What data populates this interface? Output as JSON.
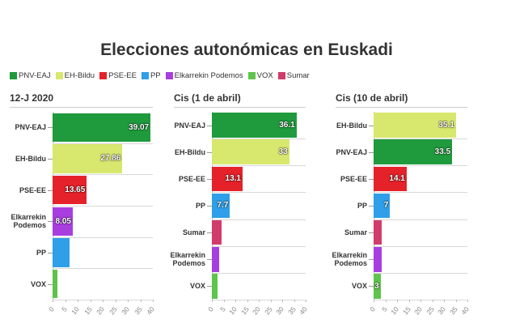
{
  "title": "Elecciones autonómicas en Euskadi",
  "legend": [
    {
      "name": "PNV-EAJ",
      "color": "#1f9a3c"
    },
    {
      "name": "EH-Bildu",
      "color": "#d8e76e"
    },
    {
      "name": "PSE-EE",
      "color": "#e5222a"
    },
    {
      "name": "PP",
      "color": "#2e9fe8"
    },
    {
      "name": "Elkarrekin Podemos",
      "color": "#a83ee0"
    },
    {
      "name": "VOX",
      "color": "#5ec44b"
    },
    {
      "name": "Sumar",
      "color": "#d23c6c"
    }
  ],
  "chart_data": [
    {
      "type": "bar",
      "orientation": "horizontal",
      "title": "12-J 2020",
      "categories": [
        "PNV-EAJ",
        "EH-Bildu",
        "PSE-EE",
        "Elkarrekin Podemos",
        "PP",
        "VOX"
      ],
      "values": [
        39.07,
        27.86,
        13.65,
        8.05,
        6.7,
        2
      ],
      "value_labels": [
        "39.07",
        "27.86",
        "13.65",
        "8.05",
        null,
        null
      ],
      "xlim": [
        0,
        40
      ],
      "xticks": [
        0,
        5,
        10,
        15,
        20,
        25,
        30,
        35,
        40
      ]
    },
    {
      "type": "bar",
      "orientation": "horizontal",
      "title": "Cis (1 de abril)",
      "categories": [
        "PNV-EAJ",
        "EH-Bildu",
        "PSE-EE",
        "PP",
        "Sumar",
        "Elkarrekin Podemos",
        "VOX"
      ],
      "values": [
        36.1,
        33,
        13.1,
        7.7,
        4,
        3,
        2.5
      ],
      "value_labels": [
        "36.1",
        "33",
        "13.1",
        "7.7",
        null,
        null,
        null
      ],
      "xlim": [
        0,
        40
      ],
      "xticks": [
        0,
        5,
        10,
        15,
        20,
        25,
        30,
        35,
        40
      ]
    },
    {
      "type": "bar",
      "orientation": "horizontal",
      "title": "Cis (10 de abril)",
      "categories": [
        "EH-Bildu",
        "PNV-EAJ",
        "PSE-EE",
        "PP",
        "Sumar",
        "Elkarrekin Podemos",
        "VOX"
      ],
      "values": [
        35.1,
        33.5,
        14.1,
        7,
        3.5,
        3.5,
        3
      ],
      "value_labels": [
        "35.1",
        "33.5",
        "14.1",
        "7",
        null,
        null,
        "3"
      ],
      "xlim": [
        0,
        40
      ],
      "xticks": [
        0,
        5,
        10,
        15,
        20,
        25,
        30,
        35,
        40
      ]
    }
  ]
}
